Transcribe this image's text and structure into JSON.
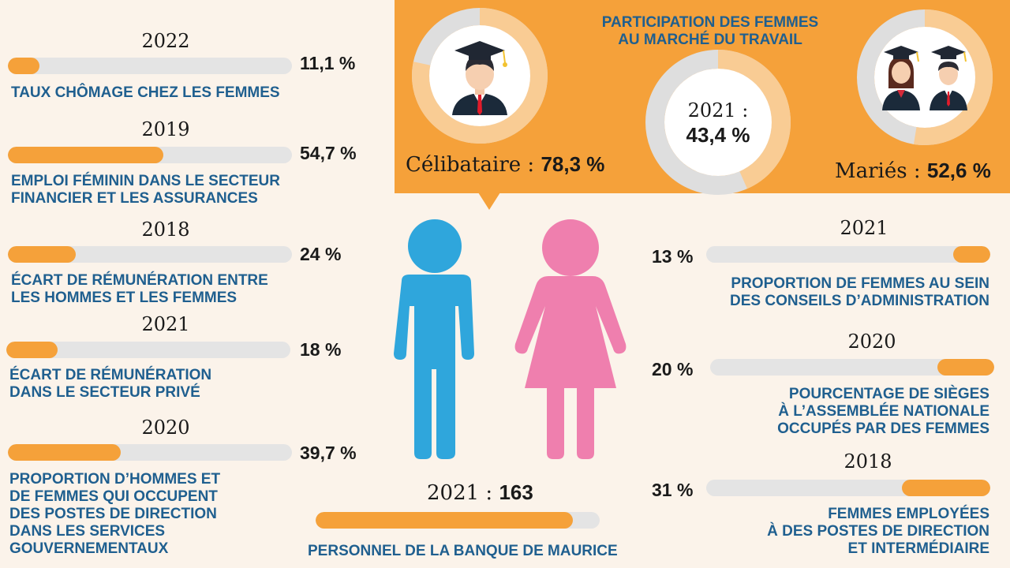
{
  "chart_data": [
    {
      "type": "bar",
      "year": "2022",
      "value": 11.1,
      "value_label": "11,1 %",
      "label": "TAUX CHÔMAGE CHEZ LES FEMMES"
    },
    {
      "type": "bar",
      "year": "2019",
      "value": 54.7,
      "value_label": "54,7 %",
      "label": "EMPLOI FÉMININ DANS LE SECTEUR\nFINANCIER ET LES ASSURANCES"
    },
    {
      "type": "bar",
      "year": "2018",
      "value": 24,
      "value_label": "24 %",
      "label": "ÉCART DE RÉMUNÉRATION ENTRE\nLES HOMMES ET LES FEMMES"
    },
    {
      "type": "bar",
      "year": "2021",
      "value": 18,
      "value_label": "18 %",
      "label": "ÉCART DE RÉMUNÉRATION\nDANS LE SECTEUR PRIVÉ"
    },
    {
      "type": "bar",
      "year": "2020",
      "value": 39.7,
      "value_label": "39,7 %",
      "label": "PROPORTION D’HOMMES ET\nDE FEMMES QUI OCCUPENT\nDES POSTES DE DIRECTION\nDANS LES SERVICES\nGOUVERNEMENTAUX"
    },
    {
      "type": "bar",
      "year": "2021",
      "value": 13,
      "value_label": "13 %",
      "label": "PROPORTION DE FEMMES AU SEIN\nDES CONSEILS D’ADMINISTRATION"
    },
    {
      "type": "bar",
      "year": "2020",
      "value": 20,
      "value_label": "20 %",
      "label": "POURCENTAGE DE SIÈGES\nÀ L’ASSEMBLÉE NATIONALE\nOCCUPÉS PAR DES FEMMES"
    },
    {
      "type": "bar",
      "year": "2018",
      "value": 31,
      "value_label": "31 %",
      "label": "FEMMES EMPLOYÉES\nÀ DES POSTES DE DIRECTION\nET INTERMÉDIAIRE"
    },
    {
      "type": "bar",
      "year_label": "2021 :",
      "value": 163,
      "value_label": "163",
      "label": "PERSONNEL DE LA BANQUE DE MAURICE"
    },
    {
      "type": "pie",
      "title": "PARTICIPATION DES FEMMES\nAU MARCHÉ DU TRAVAIL",
      "slices": [
        {
          "label": "Célibataire :",
          "value": 78.3,
          "value_label": "78,3 %"
        },
        {
          "label": "2021 :",
          "value": 43.4,
          "value_label": "43,4 %"
        },
        {
          "label": "Mariés :",
          "value": 52.6,
          "value_label": "52,6 %"
        }
      ]
    }
  ],
  "colors": {
    "accent": "#f5a13a",
    "track": "#e4e4e4",
    "label": "#1f5f8f",
    "donut_fill": "#f9cc94",
    "donut_track": "#dedede",
    "man": "#2fa6dc",
    "woman": "#ef7fae"
  },
  "icons": [
    "graduate-man-icon",
    "graduate-couple-icon",
    "man-figure-icon",
    "woman-figure-icon"
  ]
}
